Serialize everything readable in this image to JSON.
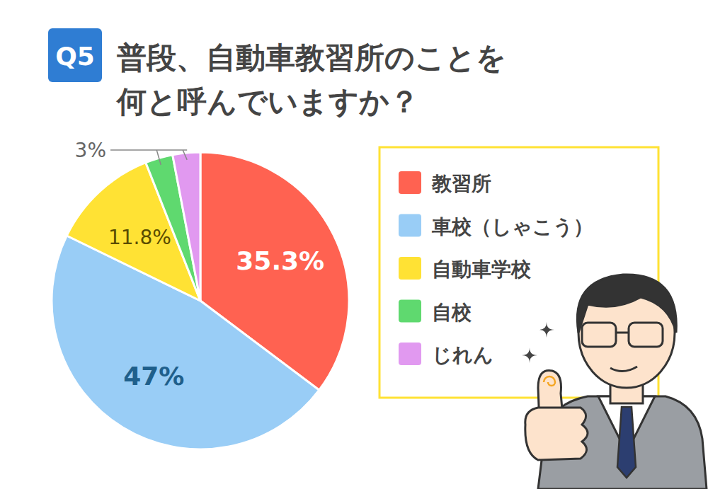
{
  "chart_data": {
    "type": "pie",
    "title": "普段、自動車教習所のことを何と呼んでいますか？",
    "annotations": [
      "Q5"
    ],
    "categories": [
      "教習所",
      "車校（しゃこう）",
      "自動車学校",
      "自校",
      "じれん"
    ],
    "values": [
      35.3,
      47,
      11.8,
      3,
      3
    ],
    "value_labels": [
      "35.3%",
      "47%",
      "11.8%",
      "3%",
      null
    ],
    "colors": [
      "#ff6251",
      "#99cdf6",
      "#ffe234",
      "#5fd96f",
      "#e199f0"
    ],
    "data_labels": true,
    "legend": "right"
  }
}
